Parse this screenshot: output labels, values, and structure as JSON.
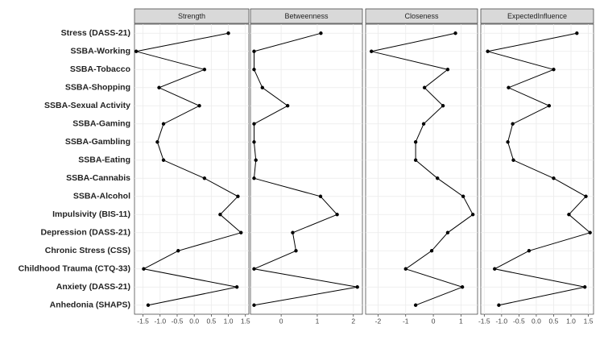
{
  "chart_data": {
    "type": "line",
    "grid": true,
    "color": "#000000",
    "categories": [
      "Stress (DASS-21)",
      "SSBA-Working",
      "SSBA-Tobacco",
      "SSBA-Shopping",
      "SSBA-Sexual Activity",
      "SSBA-Gaming",
      "SSBA-Gambling",
      "SSBA-Eating",
      "SSBA-Cannabis",
      "SSBA-Alcohol",
      "Impulsivity (BIS-11)",
      "Depression (DASS-21)",
      "Chronic Stress (CSS)",
      "Childhood Trauma (CTQ-33)",
      "Anxiety (DASS-21)",
      "Anhedonia (SHAPS)"
    ],
    "panels": [
      {
        "title": "Strength",
        "xlim": [
          -1.75,
          1.6
        ],
        "xticks": [
          -1.5,
          {
            "value": -1,
            "label": "-1.0"
          },
          -0.5,
          {
            "value": 0,
            "label": "0.0"
          },
          0.5,
          {
            "value": 1,
            "label": "1.0"
          },
          1.5
        ],
        "values": [
          1.0,
          -1.7,
          0.3,
          -1.03,
          0.15,
          -0.9,
          -1.08,
          -0.9,
          0.3,
          1.28,
          0.76,
          1.37,
          -0.47,
          -1.48,
          1.25,
          -1.35
        ]
      },
      {
        "title": "Betweenness",
        "xlim": [
          -0.85,
          2.25
        ],
        "xticks": [
          0,
          1,
          2
        ],
        "values": [
          1.1,
          -0.75,
          -0.75,
          -0.52,
          0.18,
          -0.75,
          -0.75,
          -0.7,
          -0.75,
          1.09,
          1.55,
          0.32,
          0.41,
          -0.75,
          2.11,
          -0.75
        ]
      },
      {
        "title": "Closeness",
        "xlim": [
          -2.45,
          1.6
        ],
        "xticks": [
          -2,
          -1,
          0,
          1
        ],
        "values": [
          0.8,
          -2.24,
          0.52,
          -0.32,
          0.35,
          -0.35,
          -0.64,
          -0.64,
          0.15,
          1.08,
          1.43,
          0.52,
          -0.06,
          -1.0,
          1.05,
          -0.64
        ]
      },
      {
        "title": "ExpectedInfluence",
        "xlim": [
          -1.6,
          1.65
        ],
        "xticks": [
          -1.5,
          {
            "value": -1,
            "label": "-1.0"
          },
          -0.5,
          {
            "value": 0,
            "label": "0.0"
          },
          0.5,
          {
            "value": 1,
            "label": "1.0"
          },
          1.5
        ],
        "values": [
          1.17,
          -1.4,
          0.5,
          -0.8,
          0.37,
          -0.68,
          -0.82,
          -0.66,
          0.5,
          1.43,
          0.94,
          1.55,
          -0.21,
          -1.2,
          1.4,
          -1.08
        ]
      }
    ]
  }
}
